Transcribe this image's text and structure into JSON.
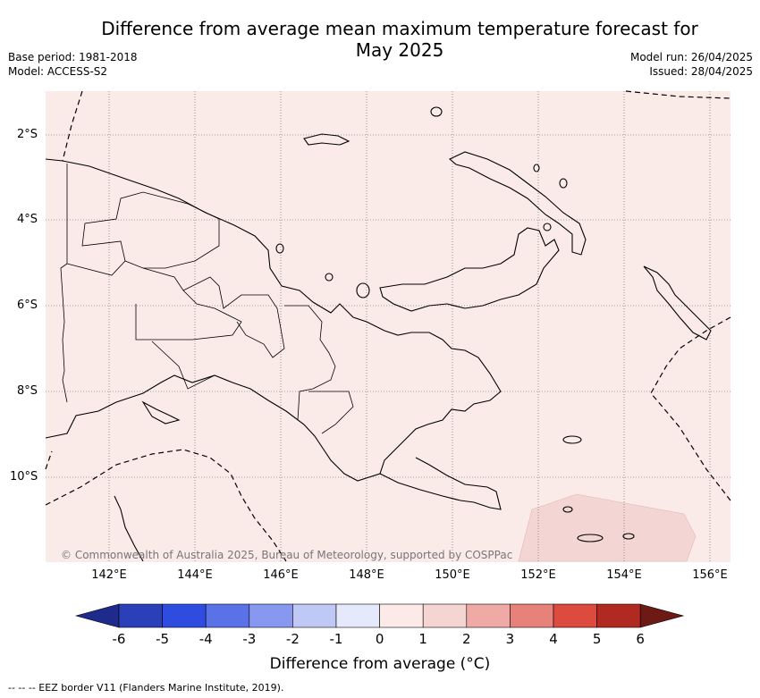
{
  "title_line1": "Difference from average mean maximum temperature forecast for",
  "title_line2": "May 2025",
  "base_period": "Base period: 1981-2018",
  "model": "Model: ACCESS-S2",
  "model_run": "Model run: 26/04/2025",
  "issued": "Issued: 28/04/2025",
  "lat_labels": [
    "2°S",
    "4°S",
    "6°S",
    "8°S",
    "10°S"
  ],
  "lon_labels": [
    "142°E",
    "144°E",
    "146°E",
    "148°E",
    "150°E",
    "152°E",
    "154°E",
    "156°E"
  ],
  "copyright": "© Commonwealth of Australia 2025, Bureau of Meteorology, supported by COSPPac",
  "colorbar": {
    "ticks": [
      "-6",
      "-5",
      "-4",
      "-3",
      "-2",
      "-1",
      "0",
      "1",
      "2",
      "3",
      "4",
      "5",
      "6"
    ],
    "label": "Difference from average (°C)",
    "colors": [
      "#1e2a8c",
      "#2a3fb8",
      "#2f4ce0",
      "#5a72e8",
      "#8897ef",
      "#c0c8f6",
      "#e6e9fb",
      "#fceae8",
      "#f5d5d2",
      "#efaaa5",
      "#e6827a",
      "#dc4b3e",
      "#b02a22",
      "#6e1a14"
    ]
  },
  "map": {
    "anomaly_fill": "#fbebe8",
    "region_fill": "#f3d6d4"
  },
  "footer": "--  --  -- EEZ border V11 (Flanders Marine Institute, 2019)."
}
